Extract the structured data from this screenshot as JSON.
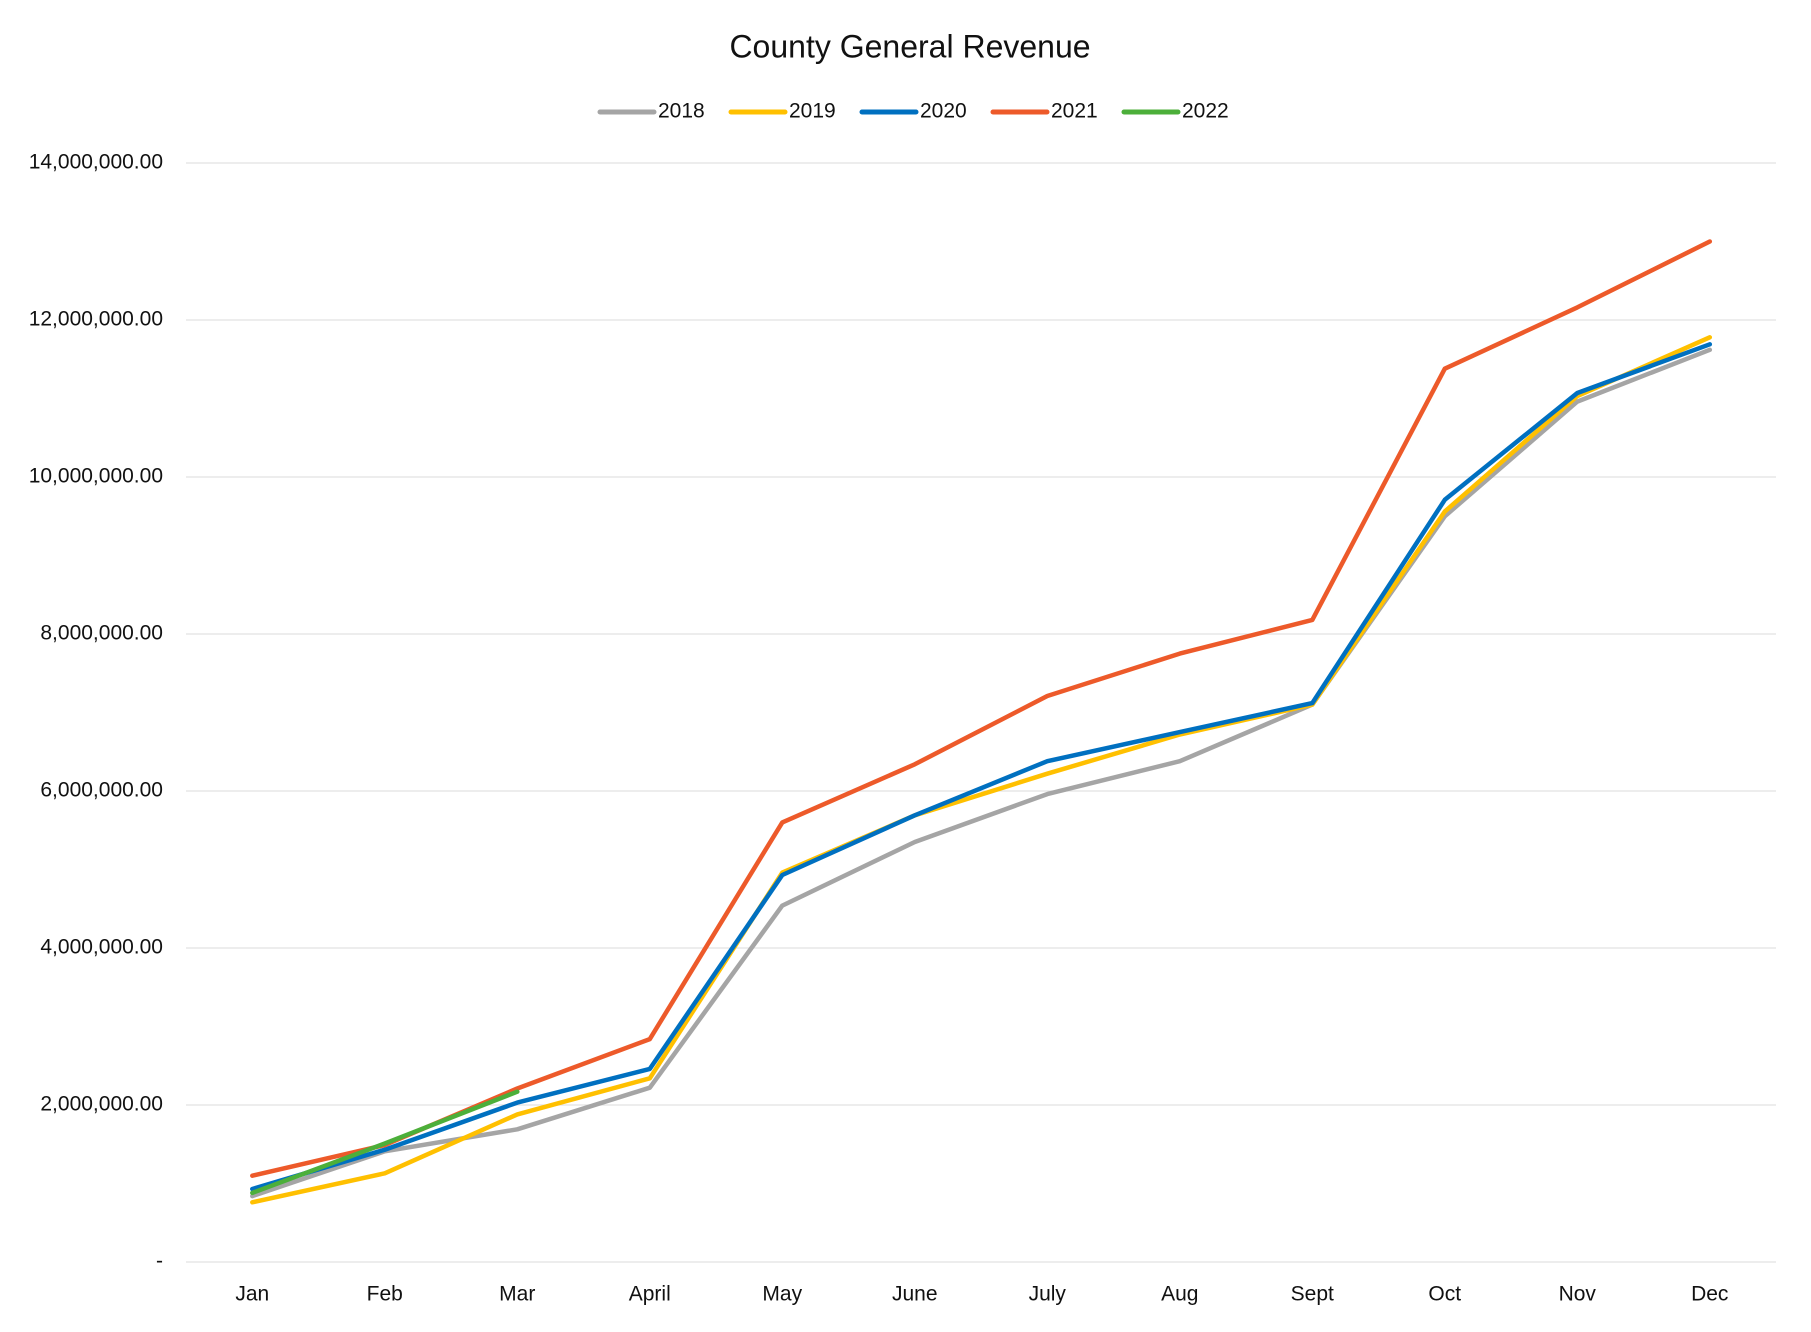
{
  "chart_data": {
    "type": "line",
    "title": "County General Revenue",
    "categories": [
      "Jan",
      "Feb",
      "Mar",
      "April",
      "May",
      "June",
      "July",
      "Aug",
      "Sept",
      "Oct",
      "Nov",
      "Dec"
    ],
    "series": [
      {
        "name": "2018",
        "color": "#a5a5a5",
        "values": [
          840000,
          1410000,
          1690000,
          2220000,
          4540000,
          5350000,
          5960000,
          6380000,
          7100000,
          9500000,
          10960000,
          11620000
        ]
      },
      {
        "name": "2019",
        "color": "#ffc000",
        "values": [
          760000,
          1130000,
          1880000,
          2340000,
          4960000,
          5690000,
          6220000,
          6720000,
          7100000,
          9560000,
          11030000,
          11780000
        ]
      },
      {
        "name": "2020",
        "color": "#0070c0",
        "values": [
          930000,
          1430000,
          2030000,
          2460000,
          4930000,
          5690000,
          6380000,
          6750000,
          7120000,
          9710000,
          11070000,
          11690000
        ]
      },
      {
        "name": "2021",
        "color": "#ed5a2a",
        "values": [
          1100000,
          1490000,
          2210000,
          2840000,
          5600000,
          6340000,
          7210000,
          7750000,
          8180000,
          11380000,
          12160000,
          13000000
        ]
      },
      {
        "name": "2022",
        "color": "#4caf3a",
        "values": [
          880000,
          1510000,
          2170000,
          null,
          null,
          null,
          null,
          null,
          null,
          null,
          null,
          null
        ]
      }
    ],
    "ylim": [
      0,
      14000000
    ],
    "yticks": [
      {
        "value": 0,
        "label": "-"
      },
      {
        "value": 2000000,
        "label": "2,000,000.00"
      },
      {
        "value": 4000000,
        "label": "4,000,000.00"
      },
      {
        "value": 6000000,
        "label": "6,000,000.00"
      },
      {
        "value": 8000000,
        "label": "8,000,000.00"
      },
      {
        "value": 10000000,
        "label": "10,000,000.00"
      },
      {
        "value": 12000000,
        "label": "12,000,000.00"
      },
      {
        "value": 14000000,
        "label": "14,000,000.00"
      }
    ],
    "grid": true,
    "legend": "top"
  }
}
